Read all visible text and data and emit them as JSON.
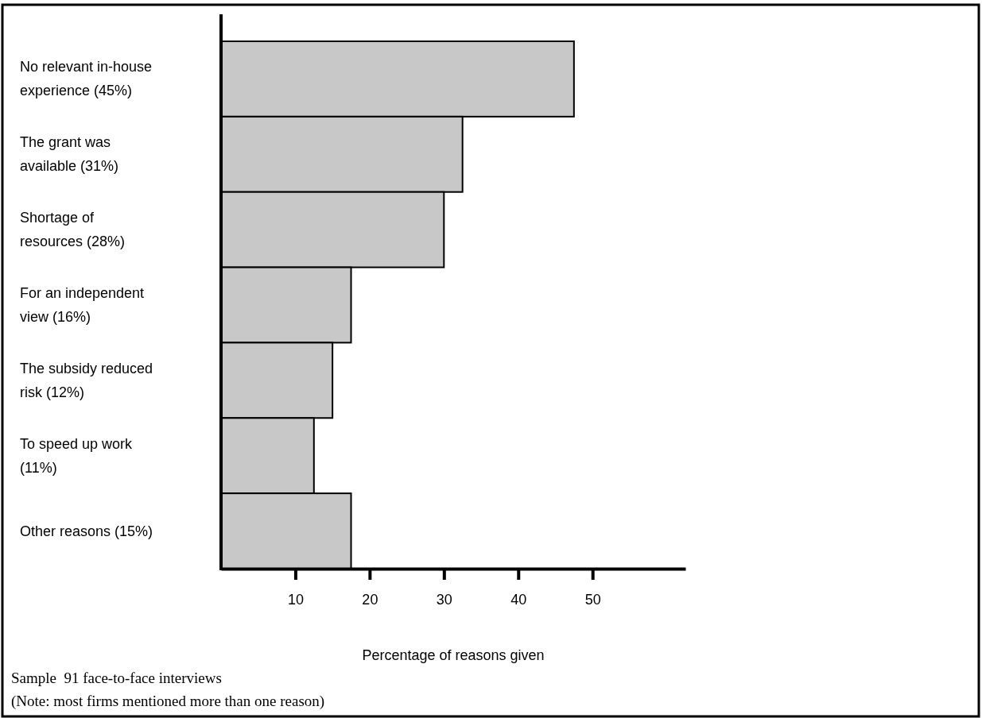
{
  "chart_data": {
    "type": "bar",
    "orientation": "horizontal",
    "categories": [
      "No relevant in-house experience (45%)",
      "The grant was available (31%)",
      "Shortage of resources (28%)",
      "For an independent view (16%)",
      "The subsidy reduced risk (12%)",
      "To speed up work (11%)",
      "Other reasons (15%)"
    ],
    "values": [
      47.5,
      32.5,
      30,
      17.5,
      15,
      12.5,
      17.5
    ],
    "color": "#c8c8c8",
    "xlim": [
      0,
      62.5
    ],
    "xticks": [
      10,
      20,
      30,
      40,
      50
    ],
    "xlabel": "Percentage of reasons given",
    "grid": false,
    "annotations": [
      "Sample  91 face-to-face interviews",
      "(Note: most firms mentioned more than one reason)"
    ]
  }
}
